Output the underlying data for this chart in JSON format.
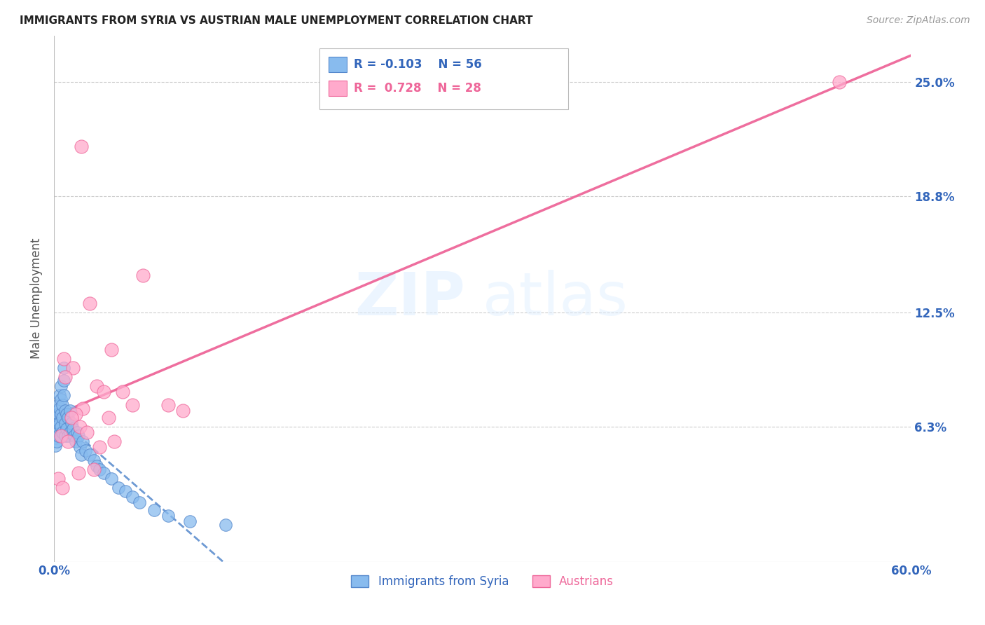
{
  "title": "IMMIGRANTS FROM SYRIA VS AUSTRIAN MALE UNEMPLOYMENT CORRELATION CHART",
  "source": "Source: ZipAtlas.com",
  "ylabel": "Male Unemployment",
  "watermark_zip": "ZIP",
  "watermark_atlas": "atlas",
  "xmin": 0.0,
  "xmax": 0.6,
  "ymin": -0.01,
  "ymax": 0.275,
  "yticks": [
    0.063,
    0.125,
    0.188,
    0.25
  ],
  "ytick_labels": [
    "6.3%",
    "12.5%",
    "18.8%",
    "25.0%"
  ],
  "blue_color": "#88BBEE",
  "blue_edge": "#5588CC",
  "pink_color": "#FFAACC",
  "pink_edge": "#EE6699",
  "blue_line_color": "#5588CC",
  "pink_line_color": "#EE6699",
  "grid_color": "#CCCCCC",
  "background_color": "#FFFFFF",
  "legend_blue_r": "R = -0.103",
  "legend_blue_n": "N = 56",
  "legend_pink_r": "R =  0.728",
  "legend_pink_n": "N = 28"
}
